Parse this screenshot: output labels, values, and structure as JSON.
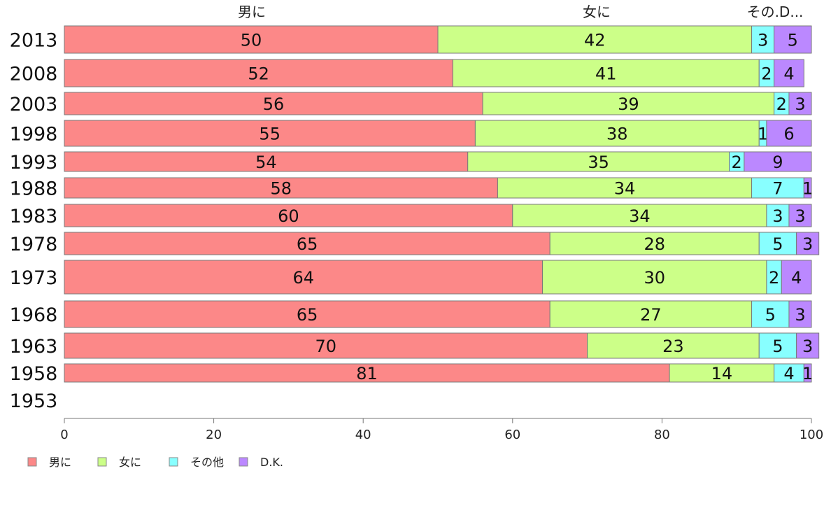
{
  "chart_data": {
    "type": "bar",
    "orientation": "horizontal",
    "stacked": true,
    "title": "",
    "xlabel": "",
    "ylabel": "",
    "xlim": [
      0,
      100
    ],
    "x_ticks": [
      0,
      20,
      40,
      60,
      80,
      100
    ],
    "top_labels": [
      "男に",
      "女に",
      "その.D..."
    ],
    "categories": [
      "2013",
      "2008",
      "2003",
      "1998",
      "1993",
      "1988",
      "1983",
      "1978",
      "1973",
      "1968",
      "1963",
      "1958",
      "1953"
    ],
    "series": [
      {
        "name": "男に",
        "color": "#fc8888",
        "values": [
          50,
          52,
          56,
          55,
          54,
          58,
          60,
          65,
          64,
          65,
          70,
          81,
          null
        ]
      },
      {
        "name": "女に",
        "color": "#ccff88",
        "values": [
          42,
          41,
          39,
          38,
          35,
          34,
          34,
          28,
          30,
          27,
          23,
          14,
          null
        ]
      },
      {
        "name": "その他",
        "color": "#88ffff",
        "values": [
          3,
          2,
          2,
          1,
          2,
          7,
          3,
          5,
          2,
          5,
          5,
          4,
          null
        ]
      },
      {
        "name": "D.K.",
        "color": "#bb88ff",
        "values": [
          5,
          4,
          3,
          6,
          9,
          1,
          3,
          3,
          4,
          3,
          3,
          1,
          null
        ]
      }
    ],
    "grid": false,
    "legend_position": "bottom-left"
  }
}
